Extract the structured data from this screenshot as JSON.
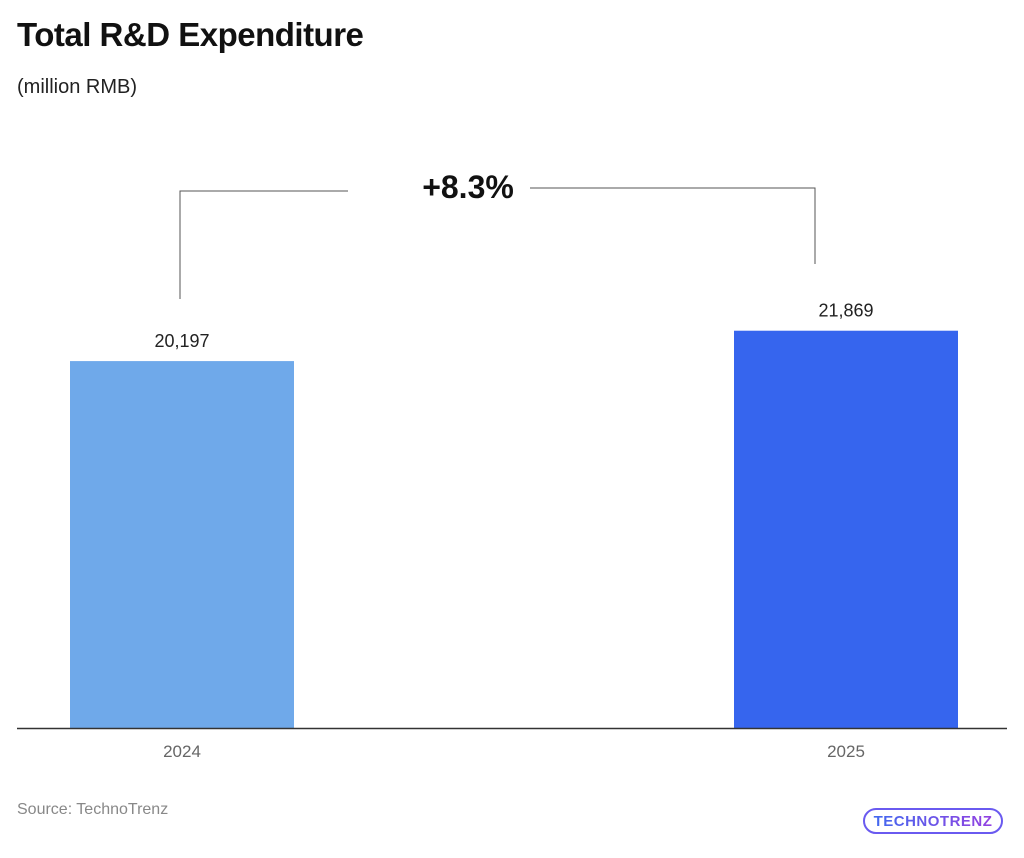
{
  "chart_data": {
    "type": "bar",
    "title": "Total R&D Expenditure",
    "subtitle": "(million RMB)",
    "categories": [
      "2024",
      "2025"
    ],
    "values": [
      20197,
      21869
    ],
    "data_labels": [
      "20,197",
      "21,869"
    ],
    "colors": [
      "#6fa9ea",
      "#3665ee"
    ],
    "ylim": [
      0,
      24000
    ],
    "grid": false,
    "y_axis_visible": false,
    "annotation": "+8.3%",
    "source": "Source: TechnoTrenz"
  },
  "logo": {
    "text": "TECHNOTRENZ"
  }
}
